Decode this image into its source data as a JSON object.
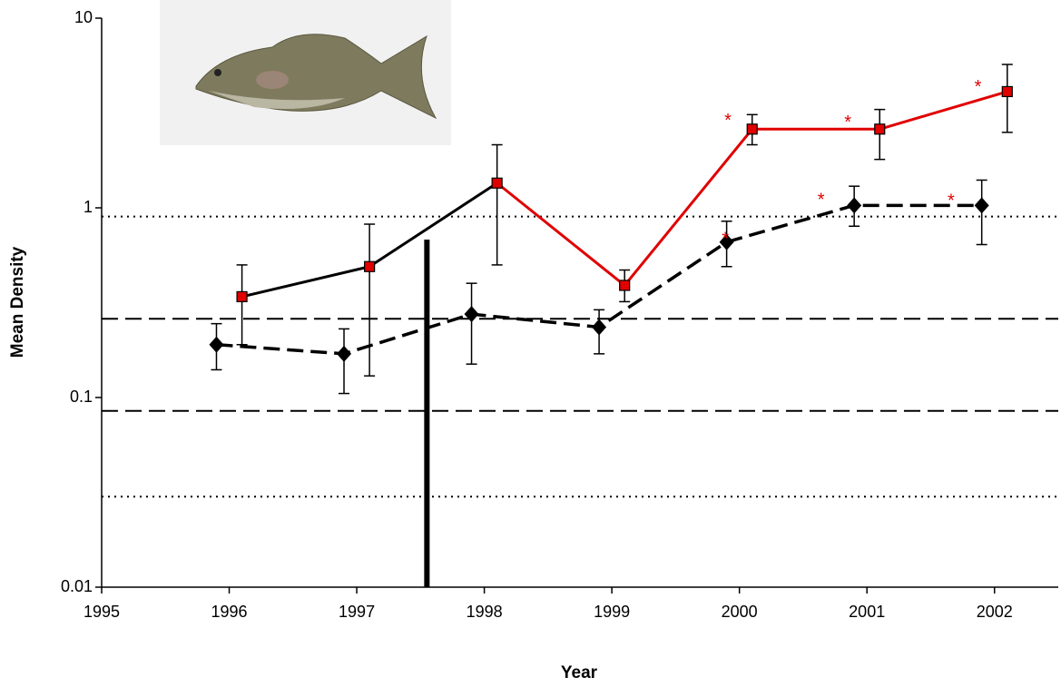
{
  "chart_data": {
    "type": "line",
    "x_label": "Year",
    "y_label": "Mean Density",
    "log_y": true,
    "xlim": [
      1995,
      2002.5
    ],
    "xticks": [
      1995,
      1996,
      1997,
      1998,
      1999,
      2000,
      2001,
      2002
    ],
    "ylim": [
      0.01,
      10
    ],
    "yticks": [
      0.01,
      0.1,
      1,
      10
    ],
    "series": [
      {
        "style": "dashed",
        "marker": "diamond",
        "color": "#000000",
        "marker_color": "#000000",
        "x": [
          1995.9,
          1996.9,
          1997.9,
          1998.9,
          1999.9,
          2000.9,
          2001.9
        ],
        "values": [
          0.19,
          0.17,
          0.275,
          0.235,
          0.66,
          1.03,
          1.03
        ],
        "err_low": [
          0.14,
          0.105,
          0.15,
          0.17,
          0.49,
          0.8,
          0.64
        ],
        "err_high": [
          0.245,
          0.23,
          0.4,
          0.29,
          0.85,
          1.3,
          1.4
        ]
      },
      {
        "style": "solid",
        "marker": "square",
        "color": "#e00000",
        "marker_color": "#e00000",
        "segment_colors": [
          "#000000",
          "#000000",
          "#e00000",
          "#e00000",
          "#e00000",
          "#e00000"
        ],
        "x": [
          1996.1,
          1997.1,
          1998.1,
          1999.1,
          2000.1,
          2001.1,
          2002.1
        ],
        "values": [
          0.34,
          0.49,
          1.35,
          0.39,
          2.6,
          2.6,
          4.1
        ],
        "err_low": [
          0.19,
          0.13,
          0.5,
          0.32,
          2.15,
          1.8,
          2.5
        ],
        "err_high": [
          0.5,
          0.82,
          2.15,
          0.47,
          3.1,
          3.3,
          5.7
        ]
      }
    ],
    "reference_lines": [
      {
        "y": 0.9,
        "style": "dotted"
      },
      {
        "y": 0.26,
        "style": "dashed"
      },
      {
        "y": 0.085,
        "style": "dashed"
      },
      {
        "y": 0.03,
        "style": "dotted"
      }
    ],
    "vertical_bar": {
      "x": 1997.55,
      "top": 0.68
    },
    "annotations": [
      {
        "text": "*",
        "x": 1999.91,
        "y": 2.85,
        "color": "#e00000"
      },
      {
        "text": "*",
        "x": 2000.85,
        "y": 2.8,
        "color": "#e00000"
      },
      {
        "text": "*",
        "x": 2001.87,
        "y": 4.3,
        "color": "#e00000"
      },
      {
        "text": "*",
        "x": 1999.89,
        "y": 0.68,
        "color": "#e00000"
      },
      {
        "text": "*",
        "x": 2000.64,
        "y": 1.09,
        "color": "#e00000"
      },
      {
        "text": "*",
        "x": 2001.66,
        "y": 1.08,
        "color": "#e00000"
      }
    ]
  }
}
